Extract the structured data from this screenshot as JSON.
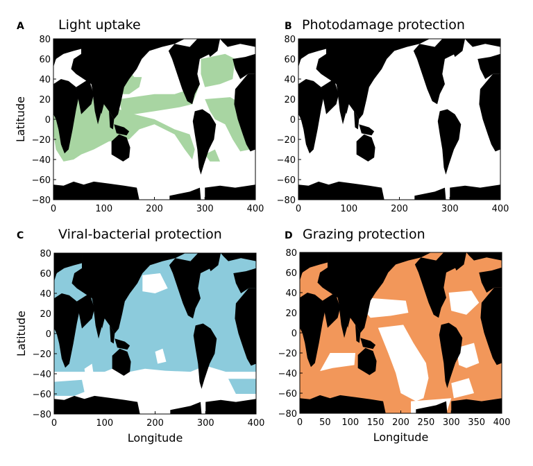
{
  "chart_data": [
    {
      "type": "heatmap",
      "panel_label": "A",
      "title": "Light uptake",
      "xlabel": "",
      "ylabel": "Latitude",
      "xlim": [
        0,
        400
      ],
      "ylim": [
        -80,
        80
      ],
      "xticks": [
        "0",
        "100",
        "200",
        "300",
        "400"
      ],
      "yticks": [
        "80",
        "60",
        "40",
        "20",
        "0",
        "−20",
        "−40",
        "−60",
        "−80"
      ],
      "land_color": "#000000",
      "ocean_color": "#ffffff",
      "highlight_color": "#a8d5a2",
      "highlight_meaning": "Light uptake",
      "grid": false
    },
    {
      "type": "heatmap",
      "panel_label": "B",
      "title": "Photodamage protection",
      "xlabel": "",
      "ylabel": "",
      "xlim": [
        0,
        400
      ],
      "ylim": [
        -80,
        80
      ],
      "xticks": [
        "0",
        "100",
        "200",
        "300",
        "400"
      ],
      "yticks": [
        "80",
        "60",
        "40",
        "20",
        "0",
        "−20",
        "−40",
        "−60",
        "−80"
      ],
      "land_color": "#000000",
      "ocean_color": "#ffffff",
      "highlight_color": "#ffffff",
      "highlight_meaning": "Photodamage protection",
      "grid": false
    },
    {
      "type": "heatmap",
      "panel_label": "C",
      "title": "Viral-bacterial protection",
      "xlabel": "Longitude",
      "ylabel": "Latitude",
      "xlim": [
        0,
        400
      ],
      "ylim": [
        -80,
        80
      ],
      "xticks": [
        "0",
        "100",
        "200",
        "300",
        "400"
      ],
      "yticks": [
        "80",
        "60",
        "40",
        "20",
        "0",
        "−20",
        "−40",
        "−60",
        "−80"
      ],
      "land_color": "#000000",
      "ocean_color": "#ffffff",
      "highlight_color": "#8ccbdc",
      "highlight_meaning": "Viral-bacterial protection",
      "grid": false
    },
    {
      "type": "heatmap",
      "panel_label": "D",
      "title": "Grazing protection",
      "xlabel": "Longitude",
      "ylabel": "",
      "xlim": [
        0,
        400
      ],
      "ylim": [
        -80,
        80
      ],
      "xticks": [
        "0",
        "50",
        "100",
        "150",
        "200",
        "250",
        "300",
        "350",
        "400"
      ],
      "yticks": [
        "80",
        "60",
        "40",
        "20",
        "0",
        "−20",
        "−40",
        "−60",
        "−80"
      ],
      "land_color": "#000000",
      "ocean_color": "#ffffff",
      "highlight_color": "#f2975a",
      "highlight_meaning": "Grazing protection",
      "grid": false
    }
  ]
}
